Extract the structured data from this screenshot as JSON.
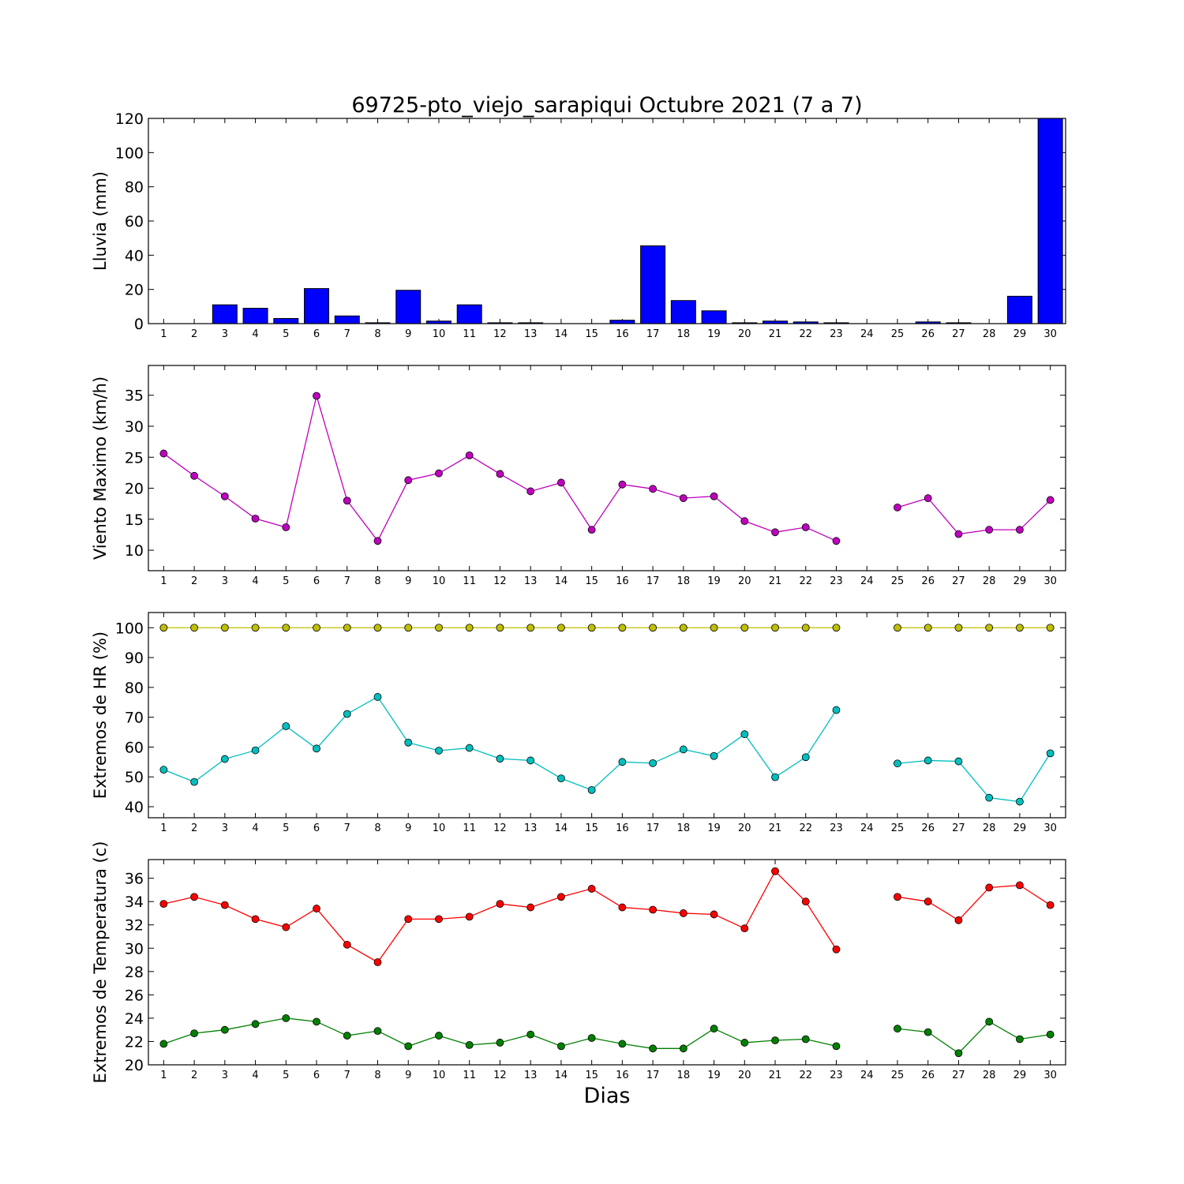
{
  "figure": {
    "title": "69725-pto_viejo_sarapiqui Octubre 2021  (7 a 7)",
    "xlabel": "Dias"
  },
  "chart_data": [
    {
      "type": "bar",
      "ylabel": "Lluvia (mm)",
      "x": [
        1,
        2,
        3,
        4,
        5,
        6,
        7,
        8,
        9,
        10,
        11,
        12,
        13,
        14,
        15,
        16,
        17,
        18,
        19,
        20,
        21,
        22,
        23,
        24,
        25,
        26,
        27,
        28,
        29,
        30
      ],
      "xticks": [
        1,
        2,
        3,
        4,
        5,
        6,
        7,
        8,
        9,
        10,
        11,
        12,
        13,
        14,
        15,
        16,
        17,
        18,
        19,
        20,
        21,
        22,
        23,
        24,
        25,
        26,
        27,
        28,
        29,
        30
      ],
      "ylim": [
        0,
        120
      ],
      "yticks": [
        0,
        20,
        40,
        60,
        80,
        100,
        120
      ],
      "series": [
        {
          "color": "#0000ff",
          "values": [
            0,
            0,
            11,
            9,
            3,
            20.5,
            4.5,
            0.5,
            19.5,
            1.5,
            11,
            0.5,
            0.5,
            0,
            0,
            2,
            45.5,
            13.5,
            7.5,
            0.5,
            1.5,
            1,
            0.5,
            0,
            0,
            1,
            0.5,
            0,
            16,
            120
          ]
        }
      ]
    },
    {
      "type": "line",
      "ylabel": "Viento Maximo (km/h)",
      "x": [
        1,
        2,
        3,
        4,
        5,
        6,
        7,
        8,
        9,
        10,
        11,
        12,
        13,
        14,
        15,
        16,
        17,
        18,
        19,
        20,
        21,
        22,
        23,
        24,
        25,
        26,
        27,
        28,
        29,
        30
      ],
      "xticks": [
        1,
        2,
        3,
        4,
        5,
        6,
        7,
        8,
        9,
        10,
        11,
        12,
        13,
        14,
        15,
        16,
        17,
        18,
        19,
        20,
        21,
        22,
        23,
        24,
        25,
        26,
        27,
        28,
        29,
        30
      ],
      "ylim": [
        6.7,
        39.8
      ],
      "yticks": [
        10,
        15,
        20,
        25,
        30,
        35
      ],
      "series": [
        {
          "color": "#bf00bf",
          "values": [
            25.6,
            22.0,
            18.7,
            15.1,
            13.7,
            34.9,
            18.0,
            11.5,
            21.3,
            22.4,
            25.3,
            22.3,
            19.5,
            20.9,
            13.3,
            20.6,
            19.9,
            18.4,
            18.7,
            14.7,
            12.9,
            13.7,
            11.5,
            null,
            16.9,
            18.4,
            12.6,
            13.3,
            13.3,
            18.1
          ]
        }
      ]
    },
    {
      "type": "line",
      "ylabel": "Extremos de HR (%)",
      "x": [
        1,
        2,
        3,
        4,
        5,
        6,
        7,
        8,
        9,
        10,
        11,
        12,
        13,
        14,
        15,
        16,
        17,
        18,
        19,
        20,
        21,
        22,
        23,
        24,
        25,
        26,
        27,
        28,
        29,
        30
      ],
      "xticks": [
        1,
        2,
        3,
        4,
        5,
        6,
        7,
        8,
        9,
        10,
        11,
        12,
        13,
        14,
        15,
        16,
        17,
        18,
        19,
        20,
        21,
        22,
        23,
        24,
        25,
        26,
        27,
        28,
        29,
        30
      ],
      "ylim": [
        36.3,
        105.1
      ],
      "yticks": [
        40,
        50,
        60,
        70,
        80,
        90,
        100
      ],
      "series": [
        {
          "color": "#bfbf00",
          "values": [
            100,
            100,
            100,
            100,
            100,
            100,
            100,
            100,
            100,
            100,
            100,
            100,
            100,
            100,
            100,
            100,
            100,
            100,
            100,
            100,
            100,
            100,
            100,
            null,
            100,
            100,
            100,
            100,
            100,
            100
          ]
        },
        {
          "color": "#00bfbf",
          "values": [
            52.4,
            48.3,
            56.0,
            58.9,
            67.0,
            59.5,
            71.1,
            76.8,
            61.5,
            58.8,
            59.7,
            56.1,
            55.5,
            49.5,
            45.6,
            55.0,
            54.6,
            59.2,
            57.0,
            64.3,
            49.9,
            56.6,
            72.4,
            null,
            54.5,
            55.5,
            55.2,
            43.0,
            41.7,
            57.9
          ]
        }
      ]
    },
    {
      "type": "line",
      "ylabel": "Extremos de Temperatura (c)",
      "x": [
        1,
        2,
        3,
        4,
        5,
        6,
        7,
        8,
        9,
        10,
        11,
        12,
        13,
        14,
        15,
        16,
        17,
        18,
        19,
        20,
        21,
        22,
        23,
        24,
        25,
        26,
        27,
        28,
        29,
        30
      ],
      "xticks": [
        1,
        2,
        3,
        4,
        5,
        6,
        7,
        8,
        9,
        10,
        11,
        12,
        13,
        14,
        15,
        16,
        17,
        18,
        19,
        20,
        21,
        22,
        23,
        24,
        25,
        26,
        27,
        28,
        29,
        30
      ],
      "ylim": [
        20,
        37.6
      ],
      "yticks": [
        20,
        22,
        24,
        26,
        28,
        30,
        32,
        34,
        36
      ],
      "series": [
        {
          "color": "#ff0000",
          "values": [
            33.8,
            34.4,
            33.7,
            32.5,
            31.8,
            33.4,
            30.3,
            28.8,
            32.5,
            32.5,
            32.7,
            33.8,
            33.5,
            34.4,
            35.1,
            33.5,
            33.3,
            33.0,
            32.9,
            31.7,
            36.6,
            34.0,
            29.9,
            null,
            34.4,
            34.0,
            32.4,
            35.2,
            35.4,
            33.7
          ]
        },
        {
          "color": "#008000",
          "values": [
            21.8,
            22.7,
            23.0,
            23.5,
            24.0,
            23.7,
            22.5,
            22.9,
            21.6,
            22.5,
            21.7,
            21.9,
            22.6,
            21.6,
            22.3,
            21.8,
            21.4,
            21.4,
            23.1,
            21.9,
            22.1,
            22.2,
            21.6,
            null,
            23.1,
            22.8,
            21.0,
            23.7,
            22.2,
            22.6
          ]
        }
      ]
    }
  ]
}
